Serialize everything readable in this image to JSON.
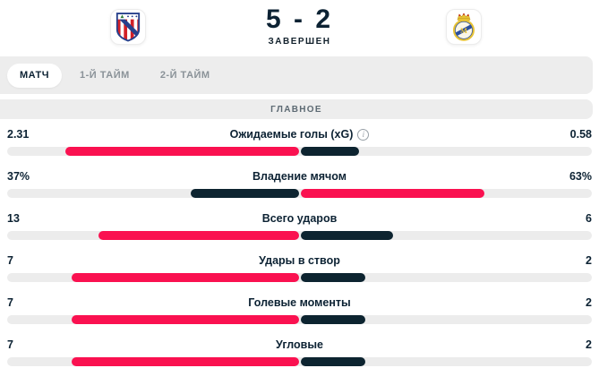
{
  "header": {
    "score": "5 - 2",
    "status": "ЗАВЕРШЕН",
    "home_badge": "atletico-madrid-crest",
    "away_badge": "real-madrid-crest"
  },
  "tabs": [
    {
      "label": "МАТЧ",
      "active": true
    },
    {
      "label": "1-Й ТАЙМ",
      "active": false
    },
    {
      "label": "2-Й ТАЙМ",
      "active": false
    }
  ],
  "section": {
    "title": "ГЛАВНОЕ"
  },
  "stats": {
    "rows": [
      {
        "label": "Ожидаемые голы (xG)",
        "home": "2.31",
        "away": "0.58",
        "home_value": 2.31,
        "away_value": 0.58,
        "info_icon": true
      },
      {
        "label": "Владение мячом",
        "home": "37%",
        "away": "63%",
        "home_value": 37,
        "away_value": 63,
        "info_icon": false
      },
      {
        "label": "Всего ударов",
        "home": "13",
        "away": "6",
        "home_value": 13,
        "away_value": 6,
        "info_icon": false
      },
      {
        "label": "Удары в створ",
        "home": "7",
        "away": "2",
        "home_value": 7,
        "away_value": 2,
        "info_icon": false
      },
      {
        "label": "Голевые моменты",
        "home": "7",
        "away": "2",
        "home_value": 7,
        "away_value": 2,
        "info_icon": false
      },
      {
        "label": "Угловые",
        "home": "7",
        "away": "2",
        "home_value": 7,
        "away_value": 2,
        "info_icon": false
      }
    ]
  },
  "colors": {
    "leader_bar": "#fa1150",
    "trailer_bar": "#0d2430",
    "track": "#ececec",
    "dark_text": "#0c2233",
    "muted_text": "#8a9298"
  }
}
